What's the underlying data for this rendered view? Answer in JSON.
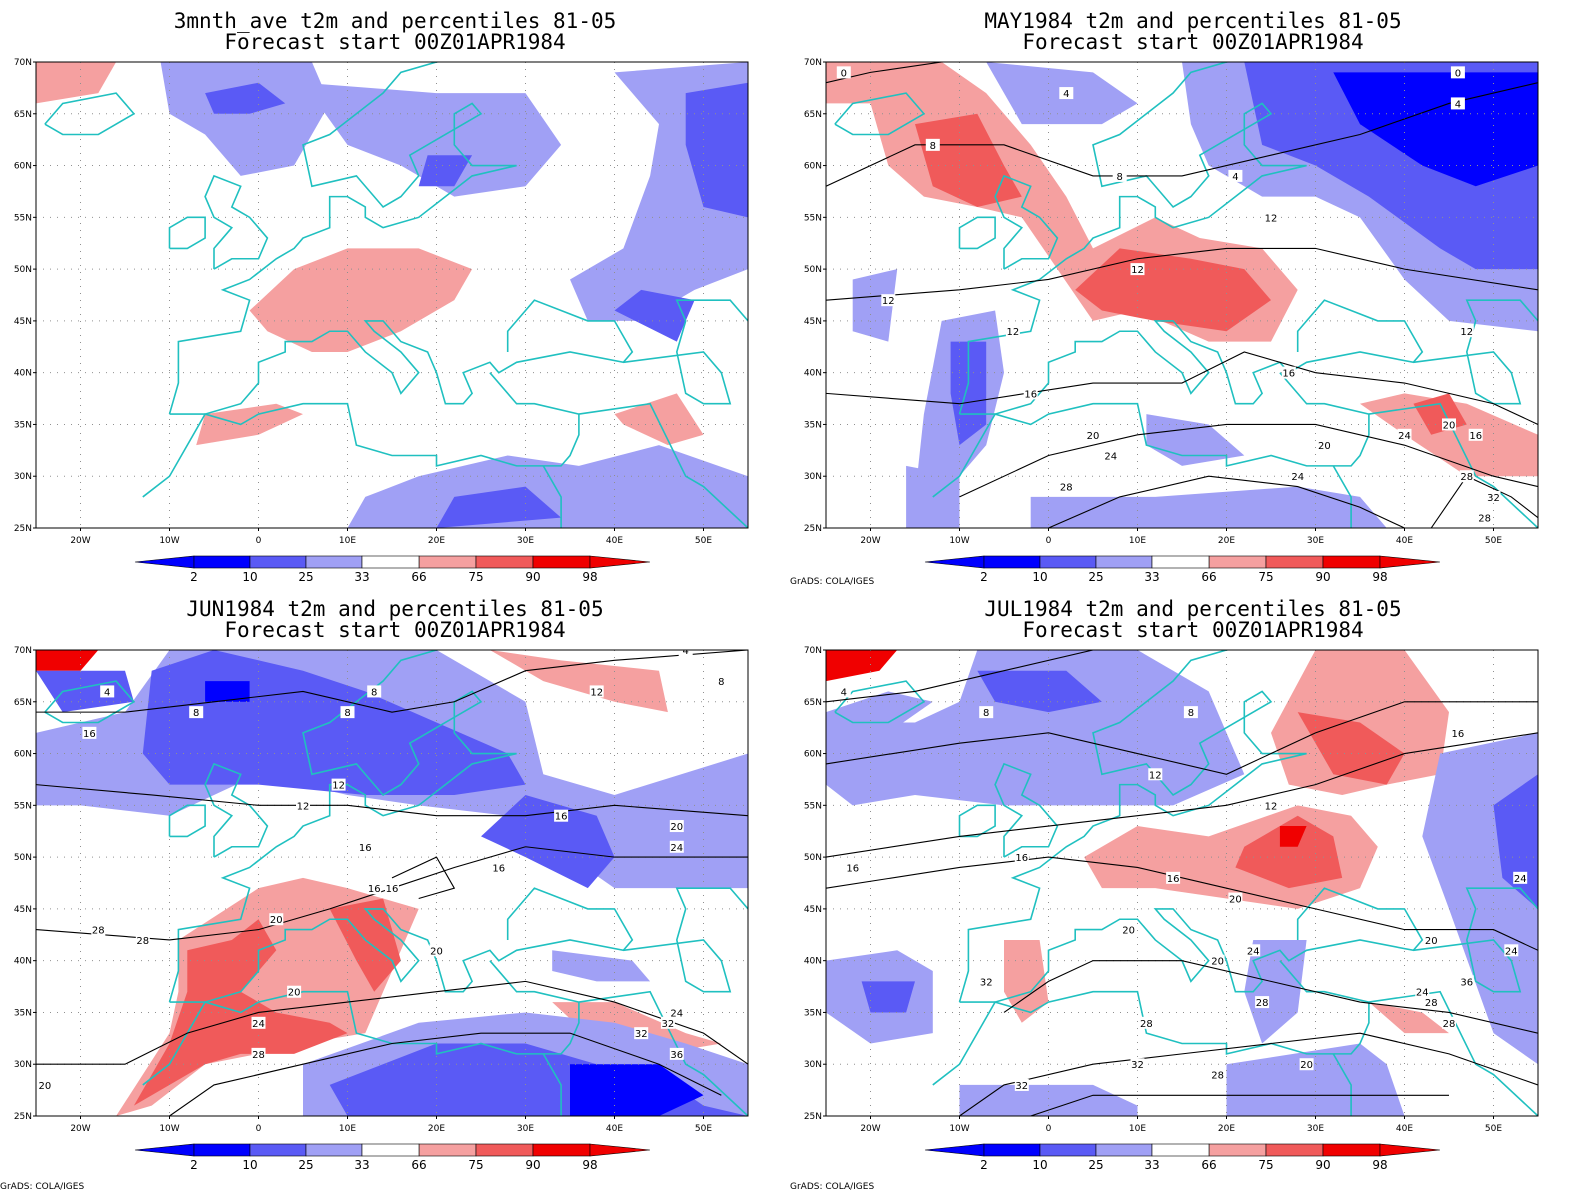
{
  "colors": {
    "blue_dark": "#0000ff",
    "blue_mid": "#5a5af5",
    "blue_light": "#a0a0f5",
    "red_light": "#f5a0a0",
    "red_mid": "#f05a5a",
    "red_dark": "#f00000",
    "coast": "#20c0c0",
    "contour": "#000000"
  },
  "legend": {
    "ticks": [
      "2",
      "10",
      "25",
      "33",
      "66",
      "75",
      "90",
      "98"
    ]
  },
  "credit": "GrADS: COLA/IGES",
  "panels": [
    {
      "title1": "3mnth_ave t2m and percentiles 81-05",
      "title2": "Forecast start 00Z01APR1984",
      "show_credit": false,
      "lat_labels": [
        "70N",
        "65N",
        "60N",
        "55N",
        "50N",
        "45N",
        "40N",
        "35N",
        "30N",
        "25N"
      ],
      "lon_labels": [
        "20W",
        "10W",
        "0",
        "10E",
        "20E",
        "30E",
        "40E",
        "50E"
      ],
      "contour_labels": []
    },
    {
      "title1": "MAY1984 t2m and percentiles 81-05",
      "title2": "Forecast start 00Z01APR1984",
      "show_credit": true,
      "lat_labels": [
        "70N",
        "65N",
        "60N",
        "55N",
        "50N",
        "45N",
        "40N",
        "35N",
        "30N",
        "25N"
      ],
      "lon_labels": [
        "20W",
        "10W",
        "0",
        "10E",
        "20E",
        "30E",
        "40E",
        "50E"
      ],
      "contour_labels": [
        "0",
        "4",
        "8",
        "4",
        "8",
        "0",
        "4",
        "12",
        "12",
        "12",
        "12",
        "12",
        "16",
        "16",
        "20",
        "24",
        "24",
        "20",
        "16",
        "20",
        "24",
        "28",
        "28",
        "32",
        "28"
      ]
    },
    {
      "title1": "JUN1984 t2m and percentiles 81-05",
      "title2": "Forecast start 00Z01APR1984",
      "show_credit": true,
      "lat_labels": [
        "70N",
        "65N",
        "60N",
        "55N",
        "50N",
        "45N",
        "40N",
        "35N",
        "30N",
        "25N"
      ],
      "lon_labels": [
        "20W",
        "10W",
        "0",
        "10E",
        "20E",
        "30E",
        "40E",
        "50E"
      ],
      "contour_labels": [
        "4",
        "8",
        "8",
        "8",
        "4",
        "8",
        "12",
        "12",
        "12",
        "16",
        "16",
        "16",
        "20",
        "16",
        "16",
        "16",
        "20",
        "20",
        "24",
        "28",
        "28",
        "20",
        "24",
        "32",
        "36",
        "24",
        "32",
        "28",
        "20"
      ]
    },
    {
      "title1": "JUL1984 t2m and percentiles 81-05",
      "title2": "Forecast start 00Z01APR1984",
      "show_credit": true,
      "lat_labels": [
        "70N",
        "65N",
        "60N",
        "55N",
        "50N",
        "45N",
        "40N",
        "35N",
        "30N",
        "25N"
      ],
      "lon_labels": [
        "20W",
        "10W",
        "0",
        "10E",
        "20E",
        "30E",
        "40E",
        "50E"
      ],
      "contour_labels": [
        "4",
        "8",
        "12",
        "8",
        "12",
        "16",
        "16",
        "16",
        "16",
        "20",
        "20",
        "20",
        "20",
        "24",
        "24",
        "24",
        "28",
        "28",
        "32",
        "28",
        "32",
        "24",
        "36",
        "28",
        "28",
        "32",
        "20"
      ]
    }
  ]
}
